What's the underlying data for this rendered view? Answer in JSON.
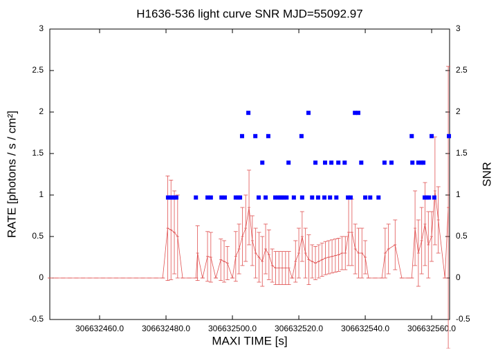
{
  "chart_data": {
    "type": "scatter",
    "title": "H1636-536 light curve  SNR MJD=55092.97",
    "x_label": "MAXI TIME [s]",
    "y_label": "RATE [photons / s / cm²]",
    "y2_label": "SNR",
    "xlim": [
      306632445,
      306632565.4
    ],
    "xticks": [
      {
        "value": 306632460,
        "label": "306632460.0"
      },
      {
        "value": 306632480,
        "label": "306632480.0"
      },
      {
        "value": 306632500,
        "label": "306632500.0"
      },
      {
        "value": 306632520,
        "label": "306632520.0"
      },
      {
        "value": 306632540,
        "label": "306632540.0"
      },
      {
        "value": 306632560,
        "label": "306632560.0"
      }
    ],
    "ylim": [
      -0.5,
      3
    ],
    "yticks": [
      -0.5,
      0,
      0.5,
      1,
      1.5,
      2,
      2.5,
      3
    ],
    "y2lim": [
      -0.5,
      3
    ],
    "y2ticks": [
      -0.5,
      0,
      0.5,
      1,
      1.5,
      2,
      2.5,
      3
    ],
    "series": [
      {
        "color": "#e05050",
        "x": [
          306632445,
          306632447,
          306632449,
          306632451,
          306632453,
          306632455,
          306632457,
          306632459,
          306632461,
          306632463,
          306632465,
          306632467,
          306632469,
          306632471,
          306632473,
          306632475,
          306632477,
          306632479,
          306632480.5,
          306632481.5,
          306632482.5,
          306632483.5,
          306632485,
          306632487,
          306632489,
          306632489.5,
          306632491,
          306632492.5,
          306632493.5,
          306632495,
          306632496.5,
          306632497.5,
          306632498.5,
          306632500,
          306632501,
          306632502,
          306632503,
          306632504,
          306632505,
          306632506,
          306632507,
          306632508,
          306632509,
          306632510,
          306632511,
          306632512,
          306632513,
          306632514,
          306632515,
          306632516,
          306632517,
          306632518,
          306632519,
          306632520,
          306632521,
          306632522,
          306632523,
          306632524,
          306632525,
          306632526,
          306632527,
          306632528,
          306632529,
          306632530,
          306632531,
          306632532,
          306632533,
          306632534,
          306632535,
          306632536,
          306632537,
          306632538,
          306632539,
          306632540,
          306632541,
          306632543,
          306632545,
          306632546,
          306632547,
          306632549,
          306632551,
          306632553,
          306632554,
          306632555,
          306632556,
          306632557,
          306632558,
          306632559,
          306632560,
          306632561,
          306632562,
          306632564,
          306632565
        ],
        "values": [
          0,
          0,
          0,
          0,
          0,
          0,
          0,
          0,
          0,
          0,
          0,
          0,
          0,
          0,
          0,
          0,
          0,
          0,
          0.6,
          0.58,
          0.55,
          0.5,
          0,
          0,
          0,
          0.3,
          0,
          0.26,
          0.25,
          0,
          0.22,
          0.2,
          0.18,
          0,
          0.26,
          0.35,
          0.5,
          0.6,
          0.85,
          0.45,
          0.3,
          0.25,
          0.2,
          0.35,
          0.28,
          0.15,
          0.12,
          0.12,
          0.12,
          0.12,
          0.12,
          0,
          0.2,
          0.3,
          0.5,
          0.3,
          0.22,
          0.2,
          0.18,
          0.2,
          0.22,
          0.24,
          0.25,
          0.26,
          0.27,
          0.28,
          0.3,
          0.3,
          0.55,
          0.55,
          0.35,
          0.3,
          0.3,
          0.25,
          0,
          0,
          0,
          0.3,
          0.35,
          0.4,
          0,
          0,
          0,
          0.6,
          0.3,
          0.45,
          0.65,
          0.4,
          0.5,
          1.05,
          0.7,
          0,
          0.85
        ],
        "errors": [
          0,
          0,
          0,
          0,
          0,
          0,
          0,
          0,
          0,
          0,
          0,
          0,
          0,
          0,
          0,
          0,
          0,
          0,
          0.63,
          0.6,
          0.5,
          0.5,
          0,
          0,
          0,
          0.33,
          0,
          0.3,
          0.3,
          0,
          0.25,
          0.25,
          0.2,
          0,
          0.3,
          0.3,
          0.35,
          0.4,
          0.45,
          0.3,
          0.3,
          0.3,
          0.3,
          0.3,
          0.3,
          0.2,
          0.2,
          0.2,
          0.2,
          0.2,
          0.2,
          0,
          0.25,
          0.3,
          0.3,
          0.3,
          0.3,
          0.2,
          0.2,
          0.2,
          0.2,
          0.2,
          0.2,
          0.2,
          0.2,
          0.2,
          0.2,
          0.2,
          0.4,
          0.4,
          0.3,
          0.3,
          0.3,
          0.2,
          0,
          0,
          0,
          0.3,
          0.3,
          0.3,
          0,
          0,
          0,
          0.45,
          0.4,
          0.4,
          0.5,
          0.4,
          0.3,
          0.65,
          0.4,
          0,
          1.7
        ]
      },
      {
        "color": "#0000ff",
        "axis": "y2",
        "x": [
          306632480.6,
          306632481.3,
          306632481.9,
          306632482.5,
          306632483.1,
          306632489,
          306632492.5,
          306632493.5,
          306632496.7,
          306632497.7,
          306632501,
          306632501.7,
          306632502.3,
          306632502.9,
          306632504.8,
          306632506.9,
          306632507.9,
          306632509,
          306632510,
          306632510.8,
          306632512.9,
          306632513.8,
          306632514.4,
          306632515,
          306632515.6,
          306632516.3,
          306632516.9,
          306632518.5,
          306632520.8,
          306632521,
          306632522.9,
          306632524,
          306632525,
          306632525.8,
          306632527.7,
          306632527.9,
          306632529.4,
          306632529.8,
          306632531.3,
          306632531.9,
          306632533.8,
          306632534.8,
          306632535.6,
          306632536.9,
          306632537.9,
          306632538.8,
          306632540,
          306632541.5,
          306632544,
          306632545.8,
          306632547.9,
          306632554,
          306632554.2,
          306632556,
          306632556.9,
          306632557.5,
          306632557.9,
          306632558.5,
          306632559.2,
          306632560,
          306632560.8,
          306632565.2
        ],
        "values": [
          0.97,
          0.97,
          0.97,
          0.97,
          0.97,
          0.97,
          0.97,
          0.97,
          0.97,
          0.97,
          0.97,
          0.97,
          0.97,
          1.71,
          1.99,
          1.71,
          0.97,
          1.39,
          0.97,
          1.71,
          0.97,
          0.97,
          0.97,
          0.97,
          0.97,
          0.97,
          1.39,
          0.97,
          1.71,
          0.97,
          1.99,
          0.97,
          1.39,
          0.97,
          0.97,
          1.39,
          0.97,
          1.39,
          0.97,
          1.39,
          1.39,
          0.97,
          0.97,
          1.99,
          1.99,
          1.39,
          0.97,
          0.97,
          0.97,
          1.39,
          1.39,
          1.71,
          1.39,
          1.39,
          1.39,
          1.39,
          0.97,
          0.97,
          0.97,
          1.71,
          0.97,
          1.71
        ]
      }
    ]
  }
}
